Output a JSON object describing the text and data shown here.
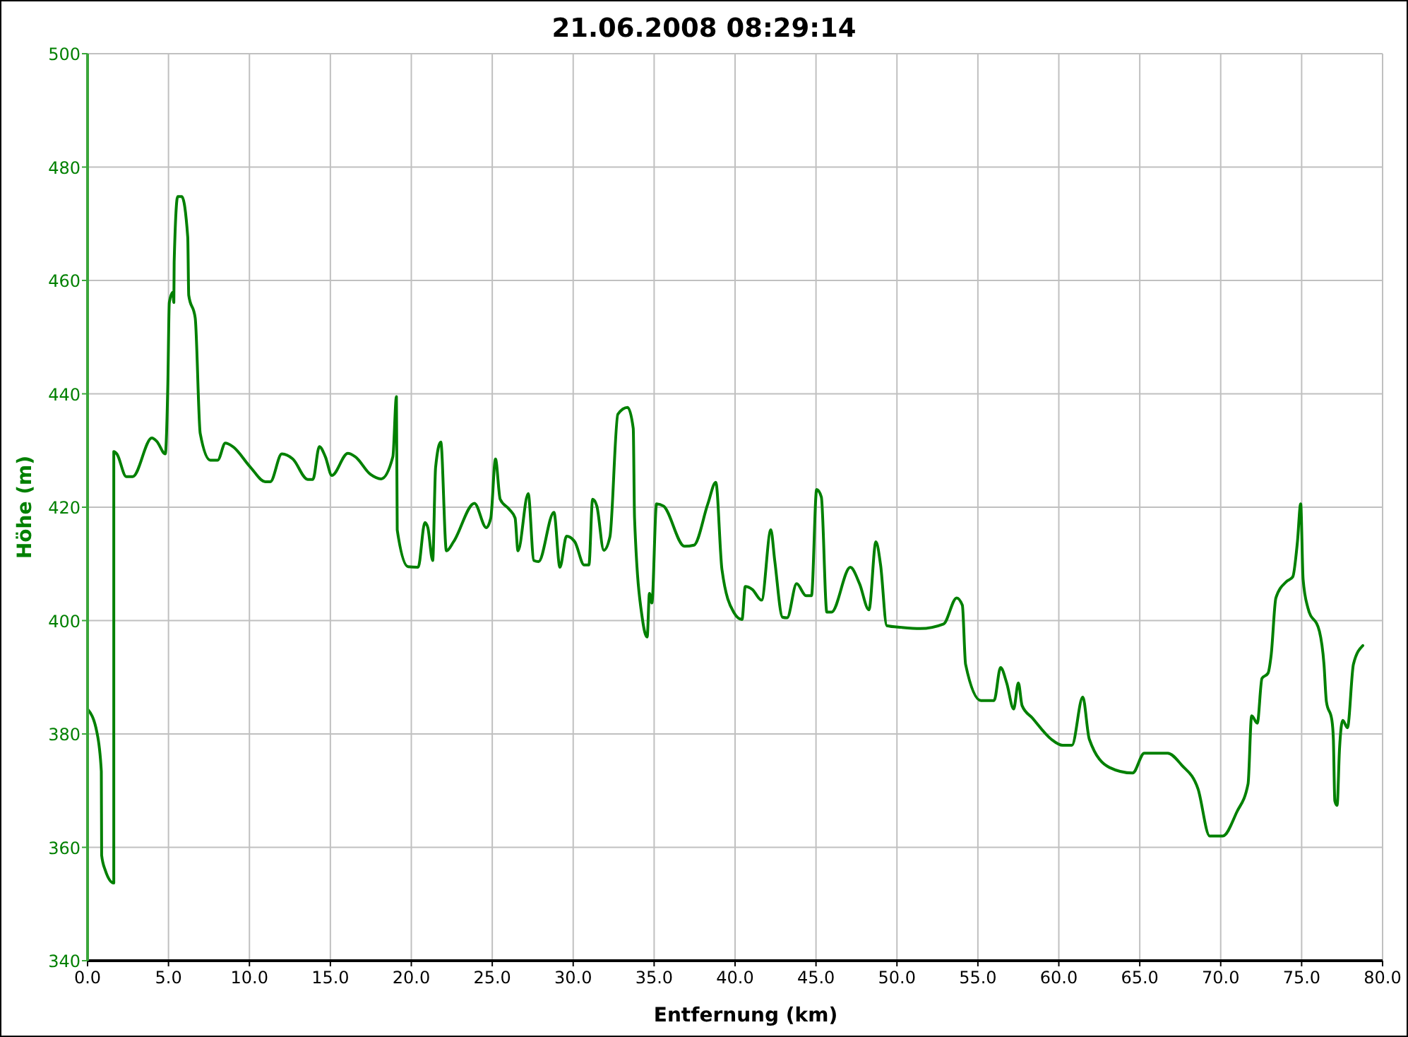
{
  "chart_data": {
    "type": "line",
    "title": "21.06.2008 08:29:14",
    "xlabel": "Entfernung (km)",
    "ylabel": "Höhe (m)",
    "xlim": [
      0,
      80
    ],
    "xticks": [
      {
        "value": 0,
        "label": "0.0"
      },
      {
        "value": 5,
        "label": "5.0"
      },
      {
        "value": 10,
        "label": "10.0"
      },
      {
        "value": 15,
        "label": "15.0"
      },
      {
        "value": 20,
        "label": "20.0"
      },
      {
        "value": 25,
        "label": "25.0"
      },
      {
        "value": 30,
        "label": "30.0"
      },
      {
        "value": 35,
        "label": "35.0"
      },
      {
        "value": 40,
        "label": "40.0"
      },
      {
        "value": 45,
        "label": "45.0"
      },
      {
        "value": 50,
        "label": "50.0"
      },
      {
        "value": 55,
        "label": "55.0"
      },
      {
        "value": 60,
        "label": "60.0"
      },
      {
        "value": 65,
        "label": "65.0"
      },
      {
        "value": 70,
        "label": "70.0"
      },
      {
        "value": 75,
        "label": "75.0"
      },
      {
        "value": 80,
        "label": "80.0"
      }
    ],
    "ylim": [
      340,
      500
    ],
    "yticks": [
      340,
      360,
      380,
      400,
      420,
      440,
      460,
      480,
      500
    ],
    "grid": true,
    "marker": "none",
    "line_style": "solid",
    "series": [
      {
        "color": "#008000",
        "x": [
          0,
          0.57,
          0.85,
          0.87,
          1.09,
          1.62,
          1.62,
          1.81,
          2.39,
          2.79,
          3.97,
          4.28,
          4.8,
          4.96,
          5.05,
          5.27,
          5.33,
          5.35,
          5.57,
          5.82,
          6.19,
          6.25,
          6.65,
          6.96,
          7.58,
          8.04,
          8.51,
          8.97,
          10.05,
          10.98,
          11.29,
          12.0,
          12.68,
          13.6,
          13.92,
          14.32,
          14.69,
          15.09,
          16.08,
          16.54,
          17.47,
          18.14,
          18.86,
          19.08,
          19.13,
          19.8,
          20.42,
          20.84,
          21.02,
          21.32,
          21.5,
          21.82,
          22.17,
          22.61,
          23.9,
          24.63,
          24.91,
          25.2,
          25.49,
          26.06,
          26.41,
          26.59,
          27.22,
          27.57,
          27.86,
          28.81,
          29.18,
          29.59,
          30.1,
          30.68,
          30.97,
          31.2,
          31.46,
          31.89,
          32.27,
          32.76,
          33.36,
          33.71,
          33.79,
          34.28,
          34.57,
          34.71,
          34.86,
          35.15,
          35.58,
          36.88,
          37.46,
          38.32,
          38.81,
          39.19,
          39.91,
          40.43,
          40.63,
          41.06,
          41.64,
          42.21,
          42.45,
          42.93,
          43.22,
          43.8,
          44.38,
          44.72,
          45.04,
          45.33,
          45.67,
          45.96,
          47.12,
          47.69,
          48.27,
          48.7,
          48.99,
          49.37,
          50.29,
          51.44,
          52.88,
          53.69,
          54.04,
          54.24,
          55.19,
          56.0,
          56.4,
          56.78,
          57.21,
          57.5,
          57.73,
          58.37,
          59.52,
          60.24,
          60.81,
          61.48,
          61.88,
          63.12,
          64.56,
          65.28,
          66.72,
          67.59,
          68.6,
          69.32,
          70.13,
          70.99,
          71.69,
          71.91,
          72.26,
          72.55,
          72.92,
          73.12,
          73.41,
          74.07,
          74.45,
          74.74,
          74.94,
          75.09,
          75.38,
          76.1,
          76.38,
          76.53,
          76.87,
          76.96,
          77.05,
          77.19,
          77.34,
          77.54,
          77.83,
          78.2,
          78.78
        ],
        "values": [
          384.4,
          380.4,
          373.4,
          358.6,
          356,
          353.7,
          429.8,
          429.4,
          425.4,
          425.4,
          432.2,
          431.6,
          429.4,
          441.8,
          456.1,
          457.9,
          456.1,
          463.2,
          474.8,
          474.8,
          467.6,
          457.4,
          453.4,
          433,
          428.3,
          428.3,
          431.3,
          430.7,
          427.1,
          424.5,
          424.5,
          429.4,
          428.5,
          424.9,
          424.9,
          430.7,
          428.9,
          425.6,
          429.5,
          428.9,
          425.8,
          425,
          428.9,
          439.5,
          416,
          409.5,
          409.4,
          417.3,
          416.4,
          410.6,
          427,
          431.5,
          412.3,
          413.9,
          420.7,
          416.4,
          418.1,
          428.5,
          421.4,
          419.6,
          418.1,
          412.3,
          422.4,
          410.6,
          410.4,
          419.1,
          409.4,
          414.9,
          413.9,
          409.8,
          409.8,
          421.4,
          420.2,
          412.4,
          414.8,
          436.4,
          437.6,
          433.9,
          418.1,
          400.2,
          397.1,
          404.8,
          403.1,
          420.6,
          420.2,
          413.1,
          413.3,
          420.6,
          424.4,
          409,
          401.5,
          400.2,
          406,
          405.5,
          403.6,
          416,
          410.6,
          400.6,
          400.5,
          406.5,
          404.4,
          404.4,
          423.1,
          421.8,
          401.5,
          401.5,
          409.4,
          406.5,
          401.9,
          413.9,
          409.8,
          399.1,
          398.8,
          398.6,
          399.4,
          404,
          402.7,
          392.3,
          385.9,
          385.9,
          391.7,
          389,
          384.4,
          389,
          385,
          382.8,
          379.1,
          378,
          378,
          386.5,
          379.1,
          374.1,
          373.1,
          376.6,
          376.6,
          374.5,
          370.3,
          362,
          362,
          366.2,
          371.2,
          383.2,
          381.9,
          389.8,
          390.7,
          394,
          404,
          406.9,
          407.7,
          413.9,
          420.6,
          407.3,
          402.3,
          398.1,
          392.3,
          385.7,
          382.4,
          379.1,
          368.2,
          367.4,
          377.4,
          382.4,
          381.1,
          392.3,
          395.6
        ]
      }
    ]
  }
}
